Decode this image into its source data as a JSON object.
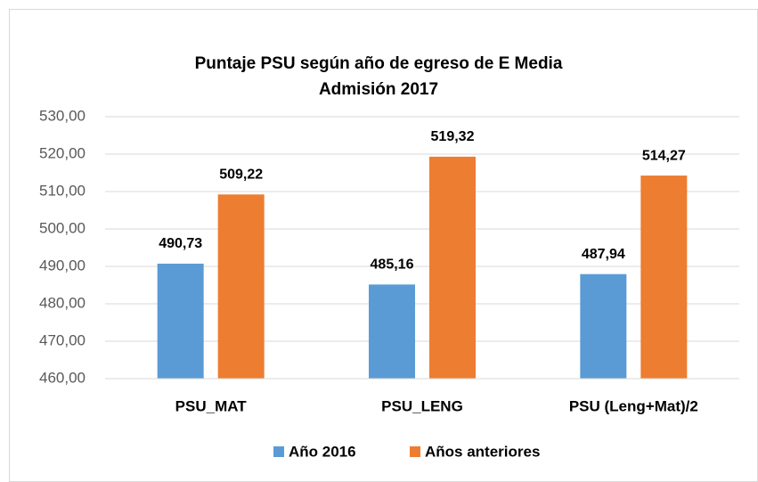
{
  "chart_data": {
    "type": "bar",
    "title": "Puntaje PSU según año de egreso de E Media",
    "subtitle": "Admisión 2017",
    "categories": [
      "PSU_MAT",
      "PSU_LENG",
      "PSU (Leng+Mat)/2"
    ],
    "series": [
      {
        "name": "Año 2016",
        "color": "#5b9bd5",
        "values": [
          490.73,
          485.16,
          487.94
        ],
        "value_labels": [
          "490,73",
          "485,16",
          "487,94"
        ]
      },
      {
        "name": "Años anteriores",
        "color": "#ed7d31",
        "values": [
          509.22,
          519.32,
          514.27
        ],
        "value_labels": [
          "509,22",
          "519,32",
          "514,27"
        ]
      }
    ],
    "ylim": [
      460,
      530
    ],
    "yticks": [
      {
        "value": 460,
        "label": "460,00"
      },
      {
        "value": 470,
        "label": "470,00"
      },
      {
        "value": 480,
        "label": "480,00"
      },
      {
        "value": 490,
        "label": "490,00"
      },
      {
        "value": 500,
        "label": "500,00"
      },
      {
        "value": 510,
        "label": "510,00"
      },
      {
        "value": 520,
        "label": "520,00"
      },
      {
        "value": 530,
        "label": "530,00"
      }
    ],
    "grid": true,
    "legend": "bottom"
  }
}
